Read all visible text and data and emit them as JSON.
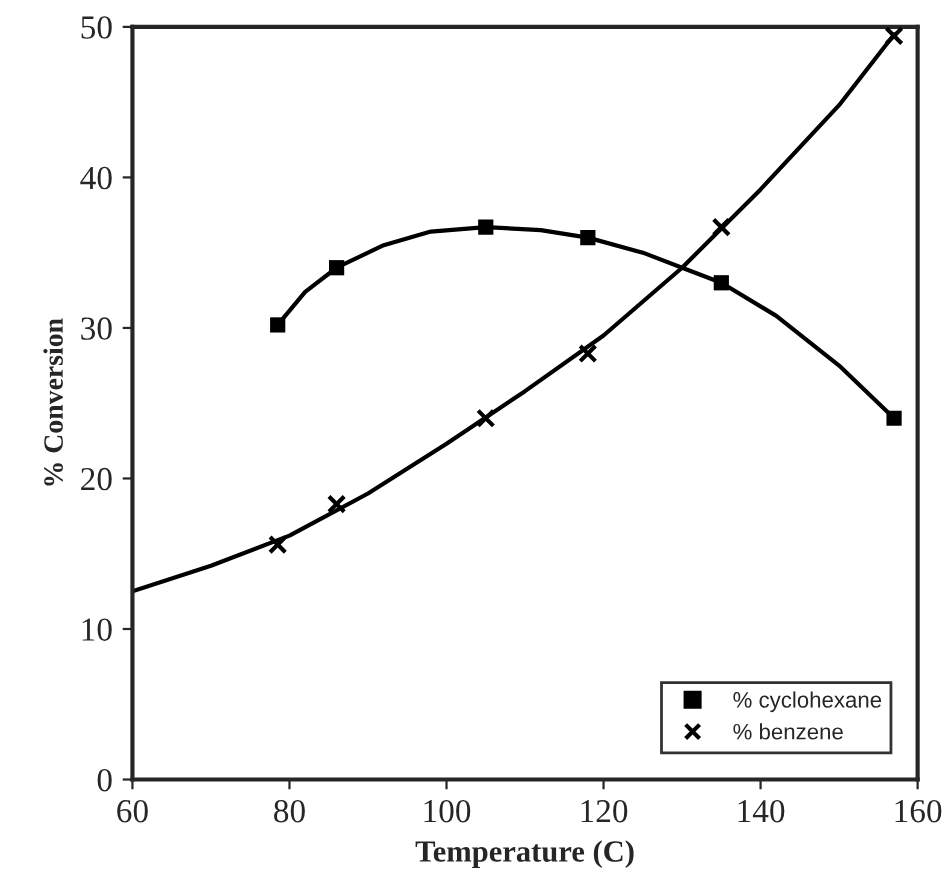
{
  "chart_data": {
    "type": "scatter",
    "xlabel": "Temperature (C)",
    "ylabel": "% Conversion",
    "xlim": [
      60,
      160
    ],
    "xticks": [
      60,
      80,
      100,
      120,
      140,
      160
    ],
    "ylim": [
      0,
      50
    ],
    "yticks": [
      0,
      10,
      20,
      30,
      40,
      50
    ],
    "grid": false,
    "legend": "bottom right",
    "series": [
      {
        "name": "% cyclohexane",
        "color": "#000000",
        "marker": "square",
        "x": [
          78.5,
          86,
          105,
          118,
          135,
          157
        ],
        "values": [
          30.2,
          34,
          36.7,
          36,
          33,
          24
        ]
      },
      {
        "name": "% benzene",
        "color": "#000000",
        "marker": "cross",
        "x": [
          78.5,
          86,
          105,
          118,
          135,
          157
        ],
        "values": [
          15.6,
          18.3,
          24,
          28.3,
          36.7,
          49.4
        ]
      },
      {
        "type": "line",
        "color": "#000000",
        "line_style": "solid",
        "x": [
          78.5,
          82,
          86,
          92,
          98,
          105,
          112,
          118,
          125,
          131,
          135,
          142,
          150,
          157
        ],
        "values": [
          30.2,
          32.4,
          34,
          35.5,
          36.4,
          36.7,
          36.5,
          36,
          35,
          33.8,
          33,
          30.8,
          27.5,
          24
        ]
      },
      {
        "type": "line",
        "color": "#000000",
        "line_style": "solid",
        "x": [
          60,
          70,
          80,
          90,
          100,
          110,
          120,
          130,
          140,
          150,
          157
        ],
        "values": [
          12.5,
          14.2,
          16.2,
          19,
          22.3,
          25.8,
          29.5,
          34,
          39.2,
          44.8,
          49.5
        ]
      }
    ]
  }
}
